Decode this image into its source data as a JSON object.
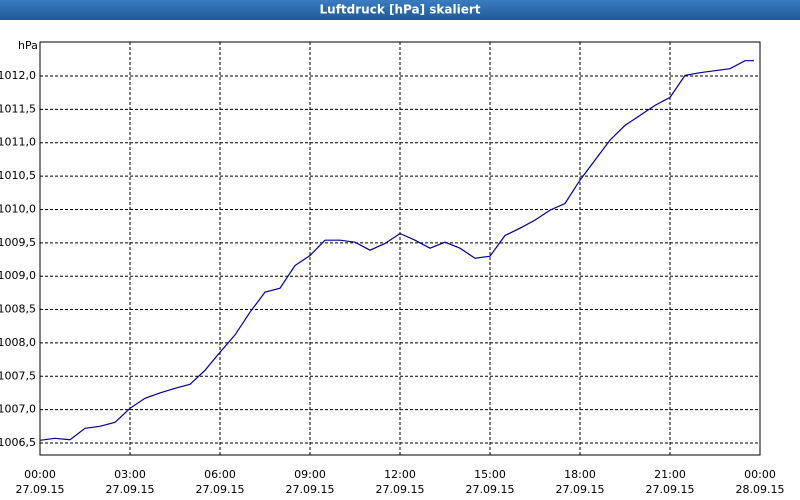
{
  "chart_data": {
    "type": "line",
    "title": "Luftdruck [hPa] skaliert",
    "y_unit": "hPa",
    "x": [
      0,
      0.5,
      1,
      1.5,
      2,
      2.5,
      3,
      3.5,
      4,
      4.5,
      5,
      5.5,
      6,
      6.5,
      7,
      7.5,
      8,
      8.5,
      9,
      9.5,
      10,
      10.5,
      11,
      11.5,
      12,
      12.5,
      13,
      13.5,
      14,
      14.5,
      15,
      15.5,
      16,
      16.5,
      17,
      17.5,
      18,
      18.5,
      19,
      19.5,
      20,
      20.5,
      21,
      21.5,
      22,
      22.5,
      23,
      23.5,
      23.8
    ],
    "series": [
      {
        "name": "Luftdruck",
        "color": "#0000a0",
        "values": [
          1006.54,
          1006.57,
          1006.55,
          1006.72,
          1006.75,
          1006.81,
          1007.02,
          1007.17,
          1007.25,
          1007.32,
          1007.38,
          1007.59,
          1007.86,
          1008.12,
          1008.46,
          1008.76,
          1008.82,
          1009.16,
          1009.31,
          1009.54,
          1009.54,
          1009.51,
          1009.39,
          1009.49,
          1009.64,
          1009.54,
          1009.42,
          1009.51,
          1009.42,
          1009.27,
          1009.3,
          1009.61,
          1009.72,
          1009.84,
          1009.99,
          1010.09,
          1010.44,
          1010.74,
          1011.04,
          1011.26,
          1011.41,
          1011.56,
          1011.68,
          1012.01,
          1012.05,
          1012.08,
          1012.11,
          1012.23,
          1012.23
        ]
      }
    ],
    "xlim": [
      0,
      24
    ],
    "xticks": [
      {
        "value": 0,
        "label": "00:00",
        "date": "27.09.15"
      },
      {
        "value": 3,
        "label": "03:00",
        "date": "27.09.15"
      },
      {
        "value": 6,
        "label": "06:00",
        "date": "27.09.15"
      },
      {
        "value": 9,
        "label": "09:00",
        "date": "27.09.15"
      },
      {
        "value": 12,
        "label": "12:00",
        "date": "27.09.15"
      },
      {
        "value": 15,
        "label": "15:00",
        "date": "27.09.15"
      },
      {
        "value": 18,
        "label": "18:00",
        "date": "27.09.15"
      },
      {
        "value": 21,
        "label": "21:00",
        "date": "27.09.15"
      },
      {
        "value": 24,
        "label": "00:00",
        "date": "28.09.15"
      }
    ],
    "ylim": [
      1006.32,
      1012.51
    ],
    "yticks": [
      {
        "value": 1006.5,
        "label": "1006,5"
      },
      {
        "value": 1007,
        "label": "1007,0"
      },
      {
        "value": 1007.5,
        "label": "1007,5"
      },
      {
        "value": 1008,
        "label": "1008,0"
      },
      {
        "value": 1008.5,
        "label": "1008,5"
      },
      {
        "value": 1009,
        "label": "1009,0"
      },
      {
        "value": 1009.5,
        "label": "1009,5"
      },
      {
        "value": 1010,
        "label": "1010,0"
      },
      {
        "value": 1010.5,
        "label": "1010,5"
      },
      {
        "value": 1011,
        "label": "1011,0"
      },
      {
        "value": 1011.5,
        "label": "1011,5"
      },
      {
        "value": 1012,
        "label": "1012,0"
      }
    ],
    "grid": true
  }
}
